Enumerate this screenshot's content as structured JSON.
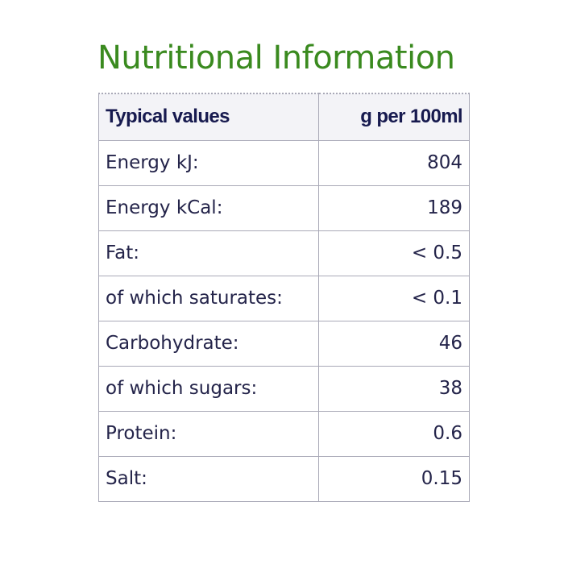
{
  "title": "Nutritional Information",
  "colors": {
    "title": "#3a8a1f",
    "header_text": "#171a4f",
    "body_text": "#24244a",
    "border": "#a9a9b7",
    "header_bg": "#f3f3f7"
  },
  "table": {
    "headers": [
      "Typical values",
      "g per 100ml"
    ],
    "rows": [
      {
        "label": "Energy kJ:",
        "value": "804"
      },
      {
        "label": "Energy kCal:",
        "value": "189"
      },
      {
        "label": "Fat:",
        "value": "< 0.5"
      },
      {
        "label": "of which saturates:",
        "value": "< 0.1"
      },
      {
        "label": "Carbohydrate:",
        "value": "46"
      },
      {
        "label": "of which sugars:",
        "value": "38"
      },
      {
        "label": "Protein:",
        "value": "0.6"
      },
      {
        "label": "Salt:",
        "value": "0.15"
      }
    ]
  }
}
